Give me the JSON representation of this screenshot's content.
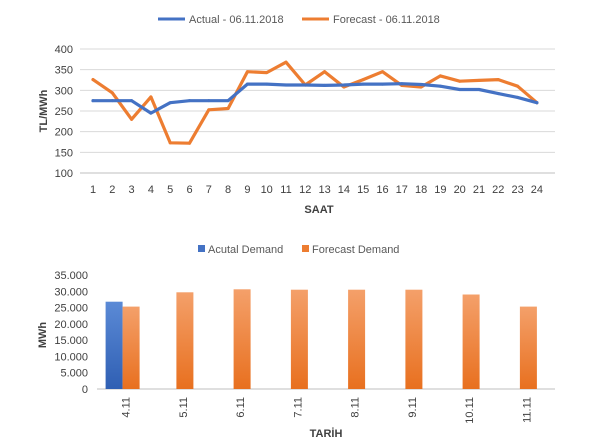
{
  "chart_data": [
    {
      "type": "line",
      "title": "",
      "xlabel": "SAAT",
      "ylabel": "TL/MWh",
      "x": [
        1,
        2,
        3,
        4,
        5,
        6,
        7,
        8,
        9,
        10,
        11,
        12,
        13,
        14,
        15,
        16,
        17,
        18,
        19,
        20,
        21,
        22,
        23,
        24
      ],
      "ylim": [
        100,
        400
      ],
      "yticks": [
        100,
        150,
        200,
        250,
        300,
        350,
        400
      ],
      "grid": true,
      "legend_position": "top",
      "series": [
        {
          "name": "Actual - 06.11.2018",
          "color": "#4472c4",
          "values": [
            275,
            275,
            275,
            245,
            270,
            275,
            275,
            275,
            315,
            315,
            313,
            313,
            312,
            313,
            315,
            315,
            316,
            314,
            310,
            302,
            302,
            292,
            283,
            270
          ]
        },
        {
          "name": "Forecast - 06.11.2018",
          "color": "#ed7d31",
          "values": [
            326,
            294,
            230,
            284,
            173,
            172,
            253,
            256,
            345,
            343,
            368,
            313,
            345,
            308,
            326,
            345,
            312,
            308,
            335,
            322,
            324,
            326,
            310,
            270
          ]
        }
      ]
    },
    {
      "type": "bar",
      "title": "",
      "xlabel": "TARİH",
      "ylabel": "MWh",
      "categories": [
        "4.11",
        "5.11",
        "6.11",
        "7.11",
        "8.11",
        "9.11",
        "10.11",
        "11.11"
      ],
      "ylim": [
        0,
        35000
      ],
      "yticks": [
        0,
        5000,
        10000,
        15000,
        20000,
        25000,
        30000,
        35000
      ],
      "ytick_labels": [
        "0",
        "5.000",
        "10.000",
        "15.000",
        "20.000",
        "25.000",
        "30.000",
        "35.000"
      ],
      "grid": false,
      "legend_position": "top",
      "series": [
        {
          "name": "Acutal Demand",
          "color": "#4472c4",
          "values": [
            26800,
            null,
            null,
            null,
            null,
            null,
            null,
            null
          ]
        },
        {
          "name": "Forecast Demand",
          "color": "#ed7d31",
          "values": [
            25300,
            29700,
            30600,
            30500,
            30500,
            30500,
            29000,
            25300
          ]
        }
      ]
    }
  ]
}
